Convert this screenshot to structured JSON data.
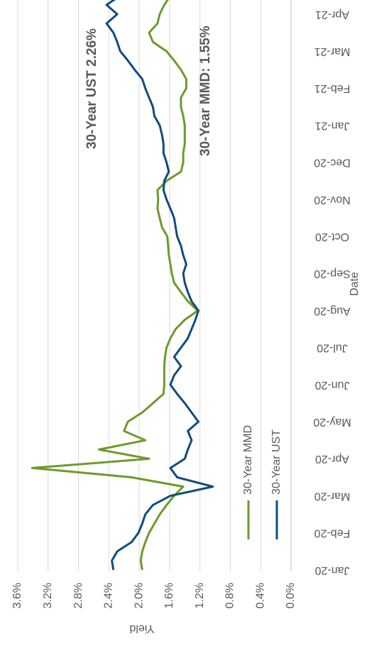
{
  "chart_data": {
    "type": "line",
    "xlabel": "Date",
    "ylabel": "Yield",
    "categories": [
      "Jan-20",
      null,
      null,
      null,
      "Feb-20",
      null,
      null,
      null,
      "Mar-20",
      null,
      null,
      null,
      "Apr-20",
      null,
      null,
      null,
      "May-20",
      null,
      null,
      null,
      "Jun-20",
      null,
      null,
      null,
      "Jul-20",
      null,
      null,
      null,
      "Aug-20",
      null,
      null,
      null,
      "Sep-20",
      null,
      null,
      null,
      "Oct-20",
      null,
      null,
      null,
      "Nov-20",
      null,
      null,
      null,
      "Dec-20",
      null,
      null,
      null,
      "Jan-21",
      null,
      null,
      null,
      "Feb-21",
      null,
      null,
      null,
      "Mar-21",
      null,
      null,
      null,
      "Apr-21",
      null,
      null
    ],
    "series": [
      {
        "name": "30-Year MMD",
        "color": "#6e9a2b",
        "values": [
          1.96,
          1.98,
          1.96,
          1.92,
          1.87,
          1.8,
          1.73,
          1.64,
          1.54,
          1.42,
          2.1,
          3.41,
          1.87,
          2.53,
          1.92,
          2.2,
          2.15,
          1.96,
          1.82,
          1.68,
          1.67,
          1.67,
          1.67,
          1.66,
          1.64,
          1.59,
          1.52,
          1.4,
          1.23,
          1.36,
          1.45,
          1.54,
          1.57,
          1.59,
          1.61,
          1.62,
          1.63,
          1.7,
          1.73,
          1.76,
          1.75,
          1.76,
          1.64,
          1.45,
          1.42,
          1.42,
          1.4,
          1.4,
          1.4,
          1.42,
          1.45,
          1.45,
          1.38,
          1.38,
          1.45,
          1.54,
          1.64,
          1.82,
          1.87,
          1.76,
          1.73,
          1.67,
          1.59
        ]
      },
      {
        "name": "30-Year UST",
        "color": "#0f4c7e",
        "values": [
          2.34,
          2.36,
          2.29,
          2.1,
          2.01,
          1.96,
          1.92,
          1.82,
          1.59,
          1.03,
          1.5,
          1.59,
          1.4,
          1.36,
          1.31,
          1.36,
          1.22,
          1.31,
          1.4,
          1.5,
          1.59,
          1.54,
          1.45,
          1.54,
          1.45,
          1.36,
          1.31,
          1.26,
          1.22,
          1.31,
          1.36,
          1.4,
          1.42,
          1.38,
          1.42,
          1.45,
          1.5,
          1.52,
          1.54,
          1.59,
          1.64,
          1.68,
          1.67,
          1.61,
          1.64,
          1.68,
          1.68,
          1.7,
          1.73,
          1.8,
          1.82,
          1.87,
          1.92,
          1.96,
          2.06,
          2.15,
          2.25,
          2.29,
          2.34,
          2.43,
          2.29,
          2.43,
          2.25
        ]
      }
    ],
    "annotations": [
      {
        "text": "30-Year UST 2.26%",
        "color": "#0f4c7e"
      },
      {
        "text": "30-Year MMD: 1.55%",
        "color": "#6e9a2b"
      }
    ],
    "ylim": [
      0,
      3.6
    ],
    "yticks": [
      {
        "value": 0,
        "label": "0.0%"
      },
      {
        "value": 0.4,
        "label": "0.4%"
      },
      {
        "value": 0.8,
        "label": "0.8%"
      },
      {
        "value": 1.2,
        "label": "1.2%"
      },
      {
        "value": 1.6,
        "label": "1.6%"
      },
      {
        "value": 2.0,
        "label": "2.0%"
      },
      {
        "value": 2.4,
        "label": "2.4%"
      },
      {
        "value": 2.8,
        "label": "2.8%"
      },
      {
        "value": 3.2,
        "label": "3.2%"
      },
      {
        "value": 3.6,
        "label": "3.6%"
      }
    ],
    "grid": true
  }
}
